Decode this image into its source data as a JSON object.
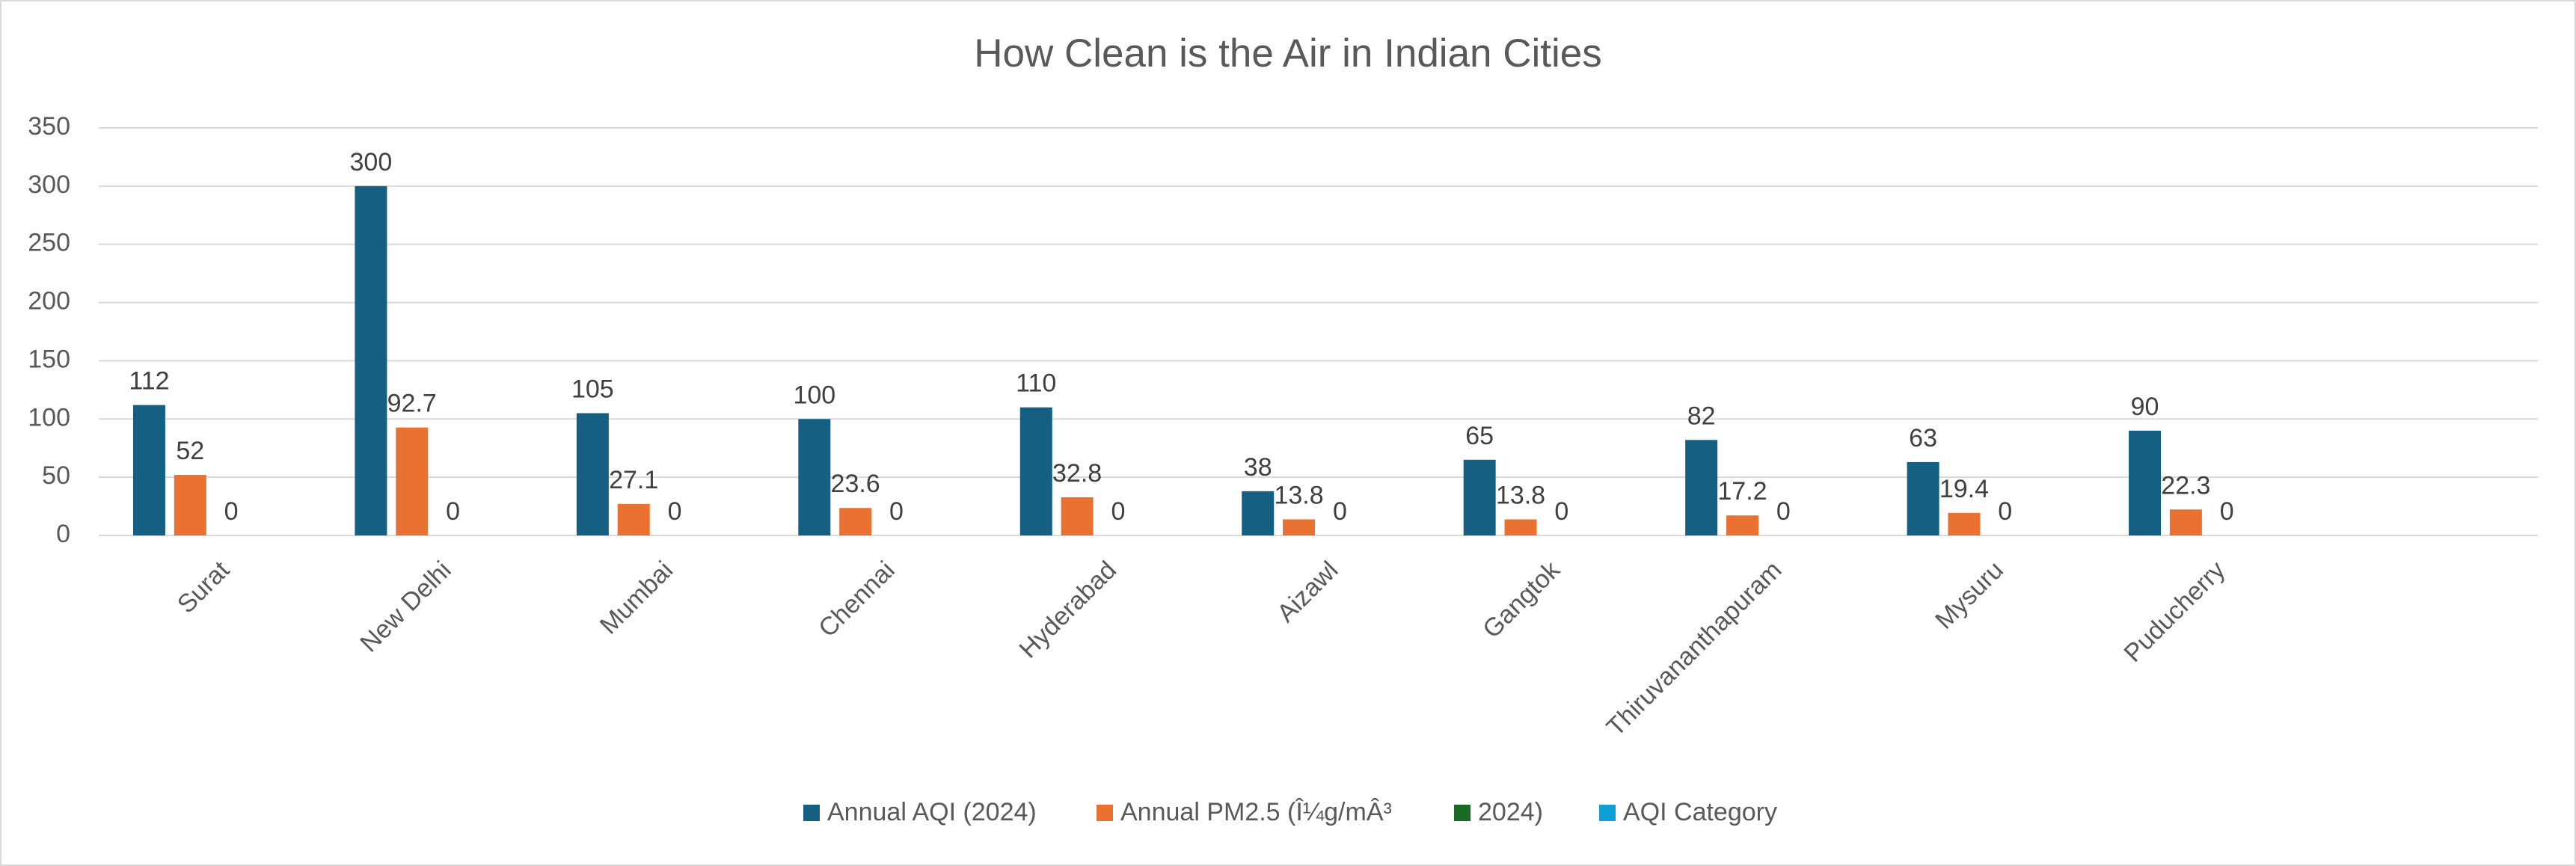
{
  "chart_data": {
    "type": "bar",
    "title": "How Clean is the Air in Indian Cities",
    "categories": [
      "Surat",
      "New Delhi",
      "Mumbai",
      "Chennai",
      "Hyderabad",
      "Aizawl",
      "Gangtok",
      "Thiruvananthapuram",
      "Mysuru",
      "Puducherry",
      null
    ],
    "series": [
      {
        "name": "Annual AQI (2024)",
        "color": "#156082",
        "values": [
          112,
          300,
          105,
          100,
          110,
          38,
          65,
          82,
          63,
          90,
          null
        ]
      },
      {
        "name": "Annual PM2.5 (Î¼g/mÂ³",
        "color": "#e97132",
        "values": [
          52,
          92.7,
          27.1,
          23.6,
          32.8,
          13.8,
          13.8,
          17.2,
          19.4,
          22.3,
          null
        ]
      },
      {
        "name": "2024)",
        "color": "#196b24",
        "values": [
          0,
          0,
          0,
          0,
          0,
          0,
          0,
          0,
          0,
          0,
          null
        ]
      },
      {
        "name": "AQI Category",
        "color": "#0f9ed5",
        "values": [
          null,
          null,
          null,
          null,
          null,
          null,
          null,
          null,
          null,
          null,
          null
        ]
      }
    ],
    "ylim": [
      0,
      350
    ],
    "yticks": [
      0,
      50,
      100,
      150,
      200,
      250,
      300,
      350
    ],
    "grid": true,
    "legend": "bottom"
  }
}
